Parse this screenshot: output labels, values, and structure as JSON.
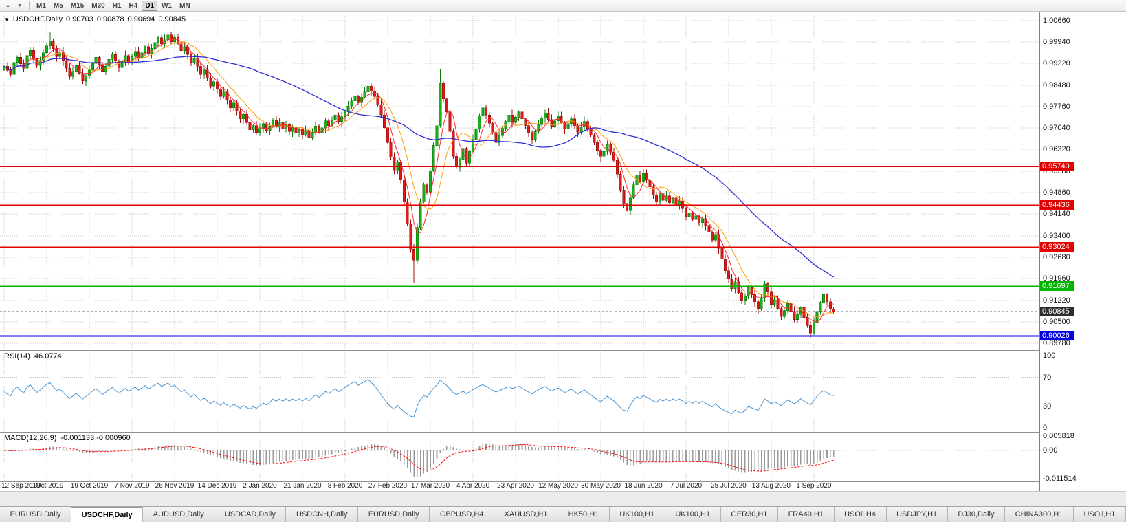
{
  "toolbar": {
    "left_icons": [
      {
        "glyph": "▲",
        "name": "auto-scroll-icon"
      },
      {
        "glyph": "▼",
        "name": "chart-shift-icon"
      }
    ],
    "timeframes": [
      "M1",
      "M5",
      "M15",
      "M30",
      "H1",
      "H4",
      "D1",
      "W1",
      "MN"
    ],
    "active_timeframe": "D1"
  },
  "chart": {
    "header": {
      "dropdown_icon": "▼",
      "symbol_period": "USDCHF,Daily",
      "open": "0.90703",
      "high": "0.90878",
      "low": "0.90694",
      "close": "0.90845"
    },
    "levels": [
      {
        "label": "0.95740",
        "value": 0.9574,
        "color": "#e00000",
        "width": 1.4
      },
      {
        "label": "0.94436",
        "value": 0.94436,
        "color": "#e00000",
        "width": 1.4
      },
      {
        "label": "0.93024",
        "value": 0.93024,
        "color": "#e00000",
        "width": 1.4
      },
      {
        "label": "0.91697",
        "value": 0.91697,
        "color": "#00b400",
        "width": 1.6
      },
      {
        "label": "0.90026",
        "value": 0.90026,
        "color": "#0000e0",
        "width": 2
      }
    ],
    "current_price": {
      "label": "0.90845",
      "value": 0.90845,
      "color": "#2e2e2e"
    }
  },
  "rsi": {
    "label": "RSI(14)",
    "value": "46.0774",
    "axis": [
      "100",
      "70",
      "30",
      "0"
    ],
    "levels": [
      70,
      30
    ],
    "color": "#4d94d0"
  },
  "macd": {
    "label": "MACD(12,26,9)",
    "values": "-0.001133 -0.000960",
    "axis": [
      "0.005818",
      "0.00",
      "-0.011514"
    ],
    "hist_color": "#9b9b9b",
    "signal_color": "#ff0000"
  },
  "tabs": {
    "active_index": 1,
    "items": [
      "EURUSD,Daily",
      "USDCHF,Daily",
      "AUDUSD,Daily",
      "USDCAD,Daily",
      "USDCNH,Daily",
      "EURUSD,Daily",
      "GBPUSD,H4",
      "XAUUSD,H1",
      "HK50,H1",
      "UK100,H1",
      "UK100,H1",
      "GER30,H1",
      "FRA40,H1",
      "USOil,H4",
      "USDJPY,H1",
      "DJ30,Daily",
      "CHINA300,H1",
      "USOil,H1"
    ]
  },
  "colors": {
    "up": "#18b018",
    "up_border": "#0c7c0c",
    "down": "#e01818",
    "down_border": "#9c0f0f",
    "ma_fast": "#ff2a2a",
    "ma_mid": "#ff9d00",
    "ma_slow": "#2b2bd4",
    "grid": "#c9c9c9",
    "current": "#2e2e2e"
  },
  "chart_data": {
    "type": "candlestick",
    "symbol": "USDCHF",
    "timeframe": "Daily",
    "ylim": [
      0.8978,
      1.0066
    ],
    "y_ticks": [
      "1.00660",
      "0.99940",
      "0.99220",
      "0.98480",
      "0.97760",
      "0.97040",
      "0.96320",
      "0.95580",
      "0.94860",
      "0.94140",
      "0.93400",
      "0.92680",
      "0.91960",
      "0.91220",
      "0.90500",
      "0.89780"
    ],
    "x_labels": [
      "12 Sep 2019",
      "1 Oct 2019",
      "19 Oct 2019",
      "7 Nov 2019",
      "26 Nov 2019",
      "14 Dec 2019",
      "2 Jan 2020",
      "21 Jan 2020",
      "8 Feb 2020",
      "27 Feb 2020",
      "17 Mar 2020",
      "4 Apr 2020",
      "23 Apr 2020",
      "12 May 2020",
      "30 May 2020",
      "18 Jun 2020",
      "7 Jul 2020",
      "25 Jul 2020",
      "13 Aug 2020",
      "1 Sep 2020"
    ],
    "label_step": 13,
    "closes": [
      0.9912,
      0.9898,
      0.9885,
      0.9925,
      0.9942,
      0.9921,
      0.9905,
      0.9948,
      0.9965,
      0.9938,
      0.9915,
      0.9932,
      0.9958,
      0.9981,
      0.9998,
      0.9972,
      0.9945,
      0.9958,
      0.993,
      0.9905,
      0.9878,
      0.9895,
      0.9915,
      0.9888,
      0.9862,
      0.988,
      0.99,
      0.9922,
      0.9942,
      0.9918,
      0.9895,
      0.9912,
      0.9935,
      0.9952,
      0.993,
      0.9908,
      0.9928,
      0.9948,
      0.9925,
      0.9945,
      0.9962,
      0.994,
      0.9958,
      0.9978,
      0.9955,
      0.9972,
      0.9992,
      1.0008,
      0.9988,
      1.0002,
      1.0018,
      0.9995,
      1.001,
      0.9988,
      0.9965,
      0.9978,
      0.9952,
      0.9925,
      0.994,
      0.9912,
      0.9885,
      0.99,
      0.9872,
      0.9845,
      0.986,
      0.9835,
      0.981,
      0.9825,
      0.9798,
      0.9772,
      0.9788,
      0.976,
      0.9735,
      0.975,
      0.9722,
      0.9698,
      0.9712,
      0.9688,
      0.9702,
      0.9718,
      0.9695,
      0.971,
      0.973,
      0.9708,
      0.9722,
      0.97,
      0.9715,
      0.9692,
      0.9705,
      0.9688,
      0.97,
      0.968,
      0.9695,
      0.9672,
      0.969,
      0.971,
      0.9688,
      0.9705,
      0.9728,
      0.9712,
      0.973,
      0.9748,
      0.9725,
      0.9742,
      0.976,
      0.9778,
      0.9795,
      0.9812,
      0.979,
      0.9808,
      0.9825,
      0.9845,
      0.9828,
      0.981,
      0.9782,
      0.9748,
      0.9705,
      0.9655,
      0.9605,
      0.9562,
      0.959,
      0.9528,
      0.9455,
      0.938,
      0.9295,
      0.9258,
      0.9368,
      0.9455,
      0.9512,
      0.9488,
      0.956,
      0.9645,
      0.9712,
      0.9855,
      0.9802,
      0.9758,
      0.9692,
      0.9608,
      0.9572,
      0.9598,
      0.9635,
      0.9585,
      0.9625,
      0.9665,
      0.97,
      0.9745,
      0.9772,
      0.9748,
      0.972,
      0.9688,
      0.9655,
      0.9678,
      0.9702,
      0.9725,
      0.9748,
      0.9722,
      0.974,
      0.9758,
      0.9735,
      0.9712,
      0.9688,
      0.9665,
      0.9692,
      0.9715,
      0.9738,
      0.9755,
      0.9732,
      0.971,
      0.9728,
      0.9745,
      0.9722,
      0.97,
      0.9718,
      0.9735,
      0.9712,
      0.969,
      0.9708,
      0.9725,
      0.9702,
      0.968,
      0.9655,
      0.9628,
      0.9608,
      0.9625,
      0.9648,
      0.9622,
      0.9595,
      0.9548,
      0.9495,
      0.9448,
      0.9425,
      0.9468,
      0.9512,
      0.9545,
      0.9522,
      0.955,
      0.9528,
      0.9505,
      0.9478,
      0.9455,
      0.9482,
      0.946,
      0.9475,
      0.9452,
      0.9468,
      0.9445,
      0.9458,
      0.9432,
      0.9405,
      0.9418,
      0.9395,
      0.9408,
      0.9385,
      0.9398,
      0.9375,
      0.9352,
      0.9325,
      0.9345,
      0.9298,
      0.9262,
      0.9222,
      0.9195,
      0.9162,
      0.9185,
      0.9148,
      0.9122,
      0.9138,
      0.9165,
      0.9142,
      0.9118,
      0.9095,
      0.9132,
      0.9178,
      0.9152,
      0.9108,
      0.9125,
      0.9095,
      0.9068,
      0.9088,
      0.9112,
      0.9085,
      0.9058,
      0.9075,
      0.9098,
      0.9065,
      0.9038,
      0.9012,
      0.9048,
      0.9085,
      0.9115,
      0.9142,
      0.9118,
      0.9092,
      0.90845
    ],
    "overrides": {
      "14": [
        0.9981,
        1.0026,
        0.997,
        0.9998
      ],
      "50": [
        1.0002,
        1.0035,
        0.9988,
        1.0018
      ],
      "125": [
        0.9295,
        0.9312,
        0.9182,
        0.9258
      ],
      "133": [
        0.9712,
        0.9902,
        0.9705,
        0.9855
      ],
      "246": [
        0.9038,
        0.9052,
        0.8998,
        0.9012
      ],
      "250": [
        0.9115,
        0.9172,
        0.9105,
        0.9142
      ]
    },
    "indicators": {
      "ma_periods": [
        5,
        10,
        50
      ],
      "rsi_period": 14,
      "macd_params": [
        12,
        26,
        9
      ]
    }
  }
}
